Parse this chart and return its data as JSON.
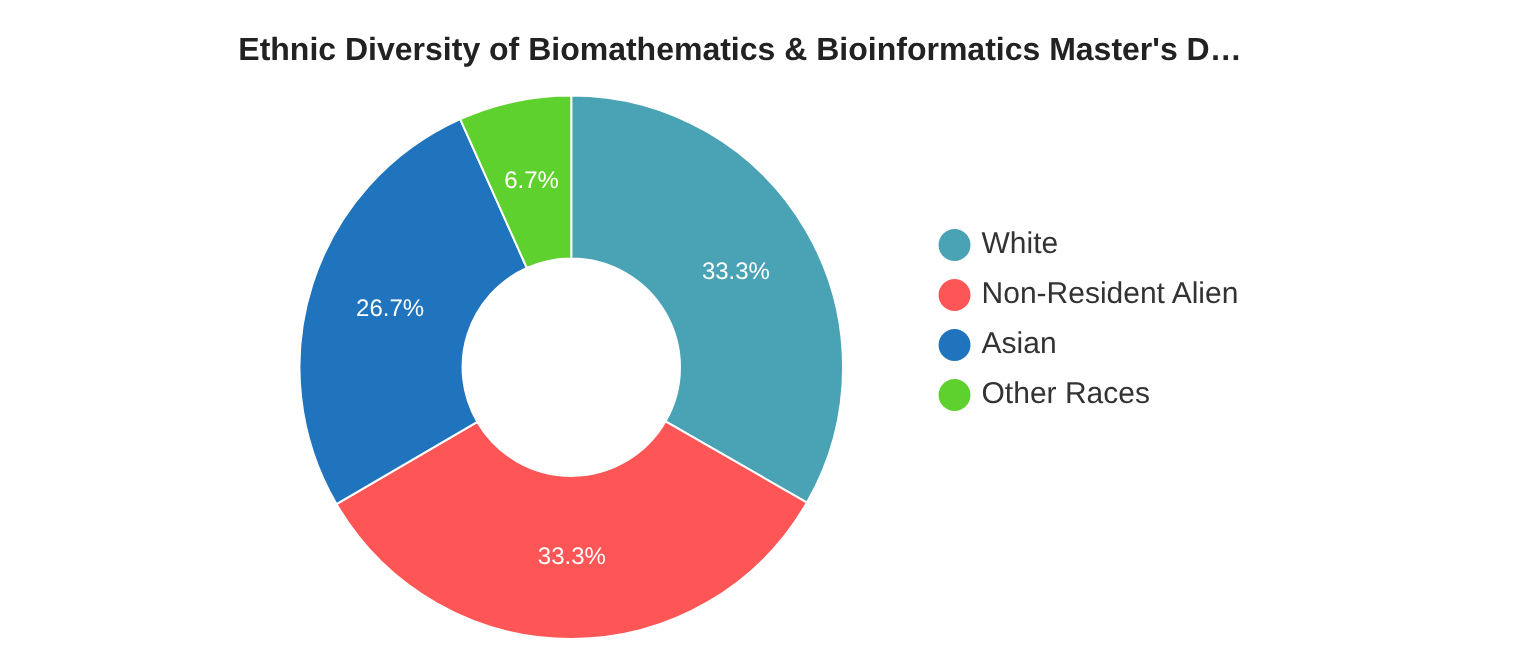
{
  "chart_data": {
    "type": "donut",
    "title": "Ethnic Diversity of Biomathematics & Bioinformatics Master's D…",
    "categories": [
      "White",
      "Non-Resident Alien",
      "Asian",
      "Other Races"
    ],
    "values": [
      33.3,
      33.3,
      26.7,
      6.7
    ],
    "colors": [
      "#4aa3b5",
      "#fe5656",
      "#1f74bd",
      "#5fd12e"
    ],
    "value_labels": [
      "33.3%",
      "33.3%",
      "26.7%",
      "6.7%"
    ],
    "legend": "right"
  }
}
